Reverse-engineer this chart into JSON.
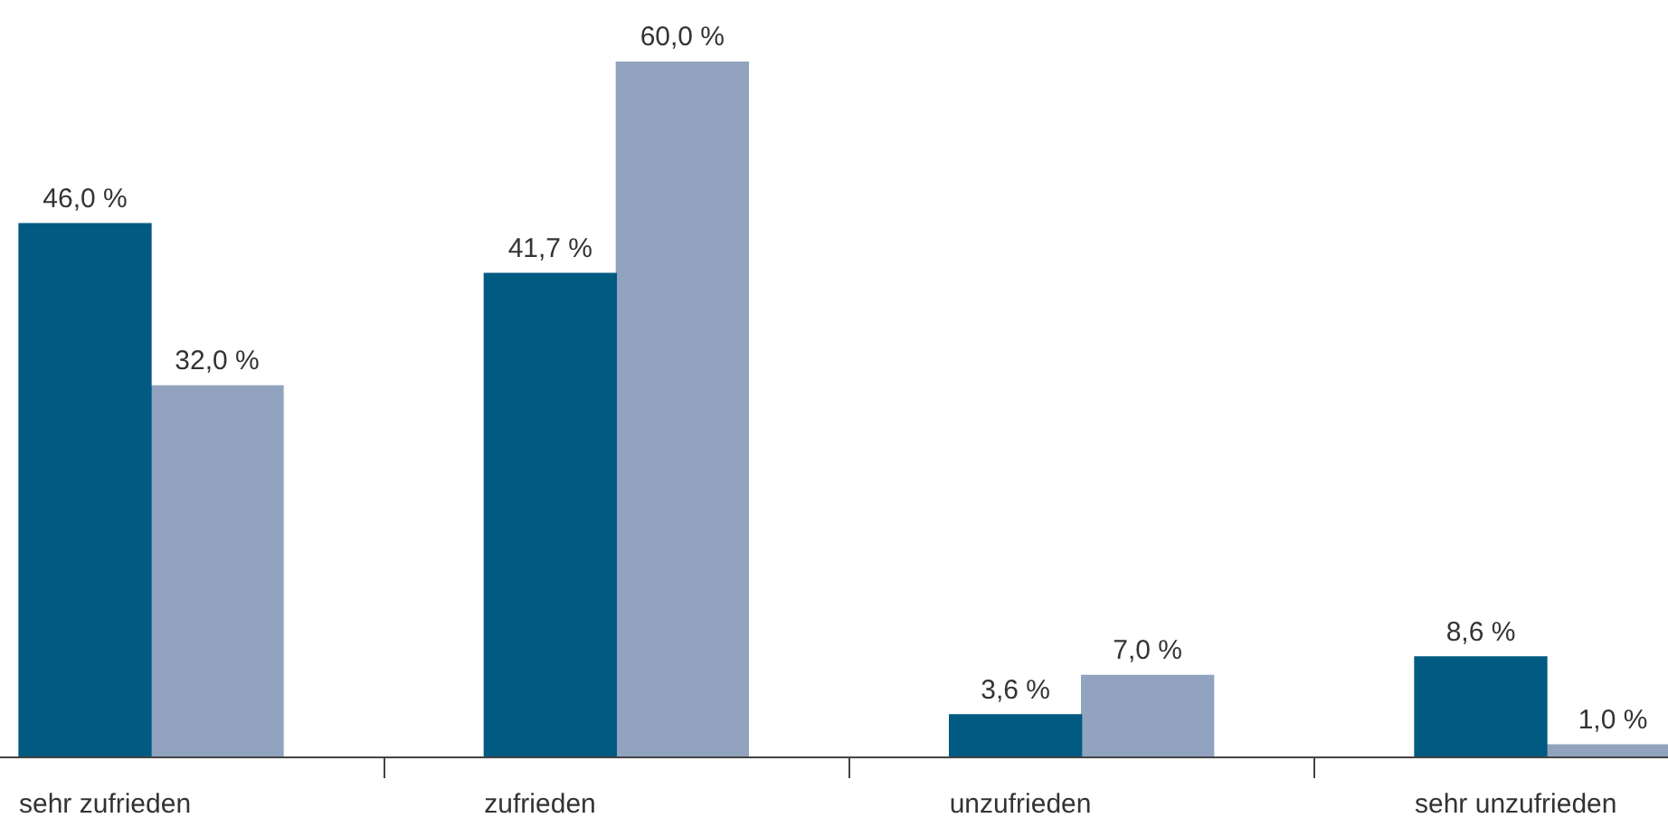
{
  "chart_data": {
    "type": "bar",
    "categories": [
      "sehr zufrieden",
      "zufrieden",
      "unzufrieden",
      "sehr unzufrieden"
    ],
    "series": [
      {
        "color": "#005a82",
        "values": [
          46.0,
          41.7,
          3.6,
          8.6
        ],
        "value_labels": [
          "46,0 %",
          "41,7 %",
          "3,6 %",
          "8,6 %"
        ]
      },
      {
        "color": "#91a3be",
        "values": [
          32.0,
          60.0,
          7.0,
          1.0
        ],
        "value_labels": [
          "32,0 %",
          "60,0 %",
          "7,0 %",
          "1,0 %"
        ]
      }
    ]
  }
}
